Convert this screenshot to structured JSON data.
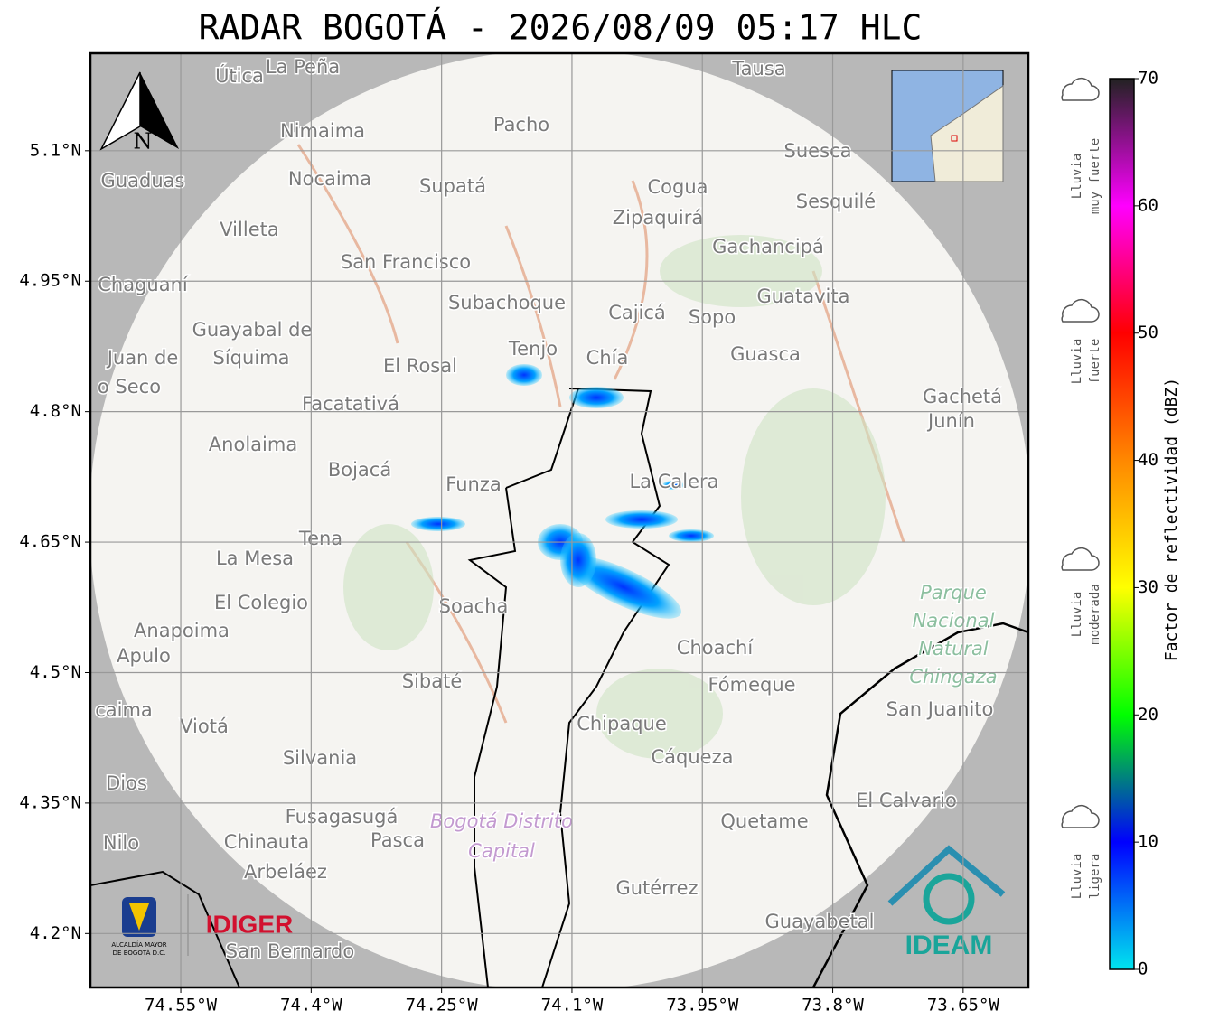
{
  "title": "RADAR BOGOTÁ - 2026/08/09 05:17 HLC",
  "map": {
    "xlim": [
      -74.654,
      -73.575
    ],
    "ylim": [
      4.138,
      5.212
    ],
    "xticks": [
      {
        "value": -74.55,
        "label": "74.55°W"
      },
      {
        "value": -74.4,
        "label": "74.4°W"
      },
      {
        "value": -74.25,
        "label": "74.25°W"
      },
      {
        "value": -74.1,
        "label": "74.1°W"
      },
      {
        "value": -73.95,
        "label": "73.95°W"
      },
      {
        "value": -73.8,
        "label": "73.8°W"
      },
      {
        "value": -73.65,
        "label": "73.65°W"
      }
    ],
    "yticks": [
      {
        "value": 5.1,
        "label": "5.1°N"
      },
      {
        "value": 4.95,
        "label": "4.95°N"
      },
      {
        "value": 4.8,
        "label": "4.8°N"
      },
      {
        "value": 4.65,
        "label": "4.65°N"
      },
      {
        "value": 4.5,
        "label": "4.5°N"
      },
      {
        "value": 4.35,
        "label": "4.35°N"
      },
      {
        "value": 4.2,
        "label": "4.2°N"
      }
    ],
    "grid": true,
    "places": [
      "Útica",
      "La Peña",
      "Tausa",
      "Pacho",
      "Nimaima",
      "Guaduas",
      "Nocaima",
      "Supatá",
      "Cogua",
      "Suesca",
      "Sesquilé",
      "Zipaquirá",
      "Villeta",
      "Gachancipá",
      "San Francisco",
      "Chaguaní",
      "Guatavita",
      "Subachoque",
      "Cajicá",
      "Sopo",
      "Guayabal de",
      "Síquima",
      "Juan de",
      "o Seco",
      "Tenjo",
      "Chía",
      "Guasca",
      "El Rosal",
      "Facatativá",
      "Gachetá",
      "Junín",
      "Anolaima",
      "Bojacá",
      "Funza",
      "La Calera",
      "Tena",
      "La Mesa",
      "El Colegio",
      "Soacha",
      "Anapoima",
      "Apulo",
      "Choachí",
      "Sibaté",
      "Fómeque",
      "San Juanito",
      "caima",
      "Viotá",
      "Chipaque",
      "Silvania",
      "Cáqueza",
      "Dios",
      "El Calvario",
      "Fusagasugá",
      "Quetame",
      "Nilo",
      "Chinauta",
      "Pasca",
      "Arbeláez",
      "Gutérrez",
      "Guayabetal",
      "San Bernardo"
    ],
    "park": [
      "Parque",
      "Nacional",
      "Natural",
      "Chingaza"
    ],
    "district": [
      "Bogotá Distrito",
      "Capital"
    ],
    "north": "N",
    "logos": {
      "alcaldia": [
        "ALCALDÍA MAYOR",
        "DE BOGOTÁ D.C."
      ],
      "idiger": "IDIGER",
      "ideam": "IDEAM"
    }
  },
  "colorbar": {
    "label": "Factor de reflectividad (dBZ)",
    "lim": [
      0,
      70
    ],
    "ticks": [
      0,
      10,
      20,
      30,
      40,
      50,
      60,
      70
    ],
    "colors": [
      "#00e5ee",
      "#0000ff",
      "#00ff00",
      "#ffff00",
      "#ff8800",
      "#ff0000",
      "#ff00ff",
      "#222222"
    ],
    "categories": [
      [
        "Lluvia",
        "muy fuerte"
      ],
      [
        "Lluvia",
        "fuerte"
      ],
      [
        "Lluvia",
        "moderada"
      ],
      [
        "Lluvia",
        "ligera"
      ]
    ]
  }
}
